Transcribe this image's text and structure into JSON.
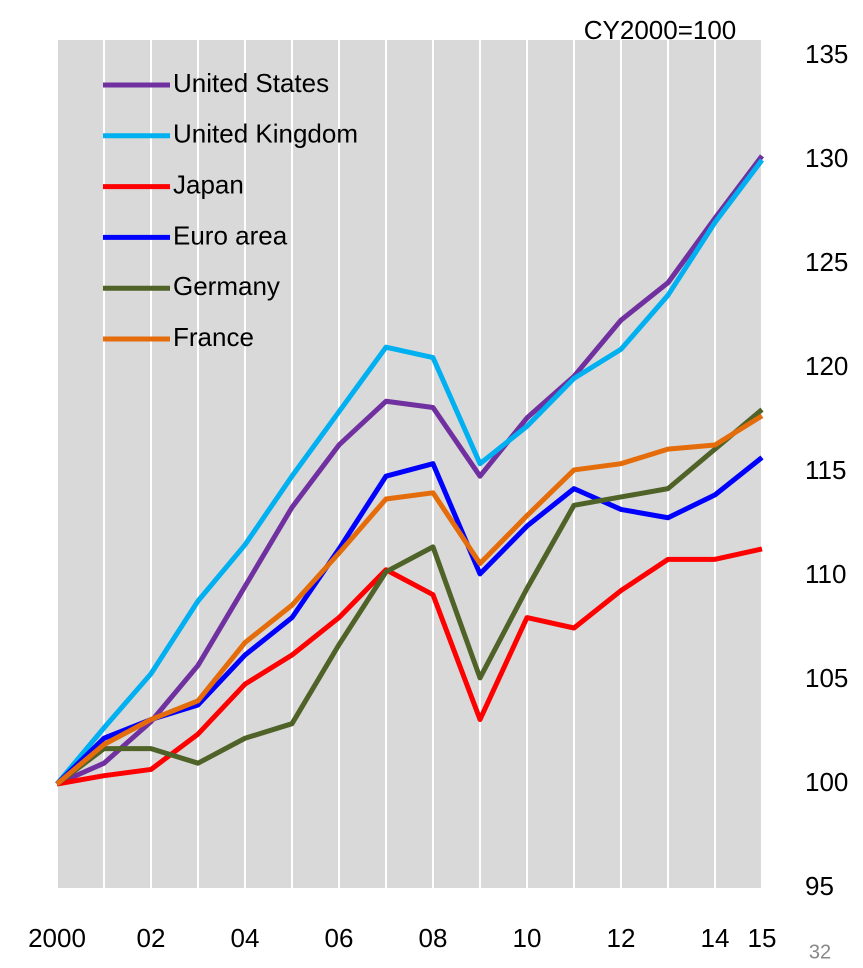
{
  "chart_data": {
    "type": "line",
    "annotation": "CY2000=100",
    "page_number": "32",
    "x": [
      2000,
      2001,
      2002,
      2003,
      2004,
      2005,
      2006,
      2007,
      2008,
      2009,
      2010,
      2011,
      2012,
      2013,
      2014,
      2015
    ],
    "xlim": [
      2000,
      2015
    ],
    "xticks": [
      {
        "value": 2000,
        "label": "2000"
      },
      {
        "value": 2002,
        "label": "02"
      },
      {
        "value": 2004,
        "label": "04"
      },
      {
        "value": 2006,
        "label": "06"
      },
      {
        "value": 2008,
        "label": "08"
      },
      {
        "value": 2010,
        "label": "10"
      },
      {
        "value": 2012,
        "label": "12"
      },
      {
        "value": 2014,
        "label": "14"
      },
      {
        "value": 2015,
        "label": "15"
      }
    ],
    "ylim": [
      95,
      135
    ],
    "yticks": [
      95,
      100,
      105,
      110,
      115,
      120,
      125,
      130,
      135
    ],
    "y_axis_side": "right",
    "grid": "vertical",
    "legend": "upper left",
    "series": [
      {
        "name": "United States",
        "color": "#7030a0",
        "values": [
          100,
          101,
          103,
          105.7,
          109.5,
          113.3,
          116.3,
          118.4,
          118.1,
          114.8,
          117.6,
          119.6,
          122.3,
          124.1,
          127.2,
          130.2
        ]
      },
      {
        "name": "United Kingdom",
        "color": "#00b0f0",
        "values": [
          100,
          102.7,
          105.3,
          108.8,
          111.5,
          114.8,
          117.9,
          121,
          120.5,
          115.4,
          117.2,
          119.5,
          120.9,
          123.5,
          127,
          130
        ]
      },
      {
        "name": "Japan",
        "color": "#ff0000",
        "values": [
          100,
          100.4,
          100.7,
          102.4,
          104.8,
          106.2,
          108,
          110.3,
          109.1,
          103.1,
          108,
          107.5,
          109.3,
          110.8,
          110.8,
          111.3
        ]
      },
      {
        "name": "Euro area",
        "color": "#0000ff",
        "values": [
          100,
          102.2,
          103.1,
          103.8,
          106.2,
          108,
          111.3,
          114.8,
          115.4,
          110.1,
          112.4,
          114.2,
          113.2,
          112.8,
          113.9,
          115.7
        ]
      },
      {
        "name": "Germany",
        "color": "#4f6228",
        "values": [
          100,
          101.7,
          101.7,
          101,
          102.2,
          102.9,
          106.7,
          110.2,
          111.4,
          105.1,
          109.4,
          113.4,
          113.8,
          114.2,
          116.1,
          118
        ]
      },
      {
        "name": "France",
        "color": "#e46c0a",
        "values": [
          100,
          101.9,
          103.1,
          104,
          106.8,
          108.6,
          111.1,
          113.7,
          114,
          110.6,
          112.9,
          115.1,
          115.4,
          116.1,
          116.3,
          117.7
        ]
      }
    ]
  }
}
